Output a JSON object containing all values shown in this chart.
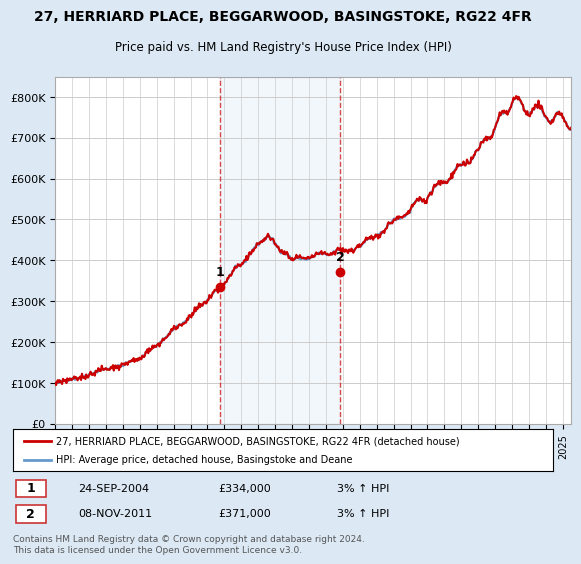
{
  "title": "27, HERRIARD PLACE, BEGGARWOOD, BASINGSTOKE, RG22 4FR",
  "subtitle": "Price paid vs. HM Land Registry's House Price Index (HPI)",
  "ylabel_ticks": [
    "£0",
    "£100K",
    "£200K",
    "£300K",
    "£400K",
    "£500K",
    "£600K",
    "£700K",
    "£800K"
  ],
  "ytick_values": [
    0,
    100000,
    200000,
    300000,
    400000,
    500000,
    600000,
    700000,
    800000
  ],
  "ylim": [
    0,
    850000
  ],
  "xlim_start": 1995.0,
  "xlim_end": 2025.5,
  "transaction1_x": 2004.73,
  "transaction1_y": 334000,
  "transaction1_label": "1",
  "transaction1_date": "24-SEP-2004",
  "transaction1_price": "£334,000",
  "transaction1_hpi": "3% ↑ HPI",
  "transaction2_x": 2011.85,
  "transaction2_y": 371000,
  "transaction2_label": "2",
  "transaction2_date": "08-NOV-2011",
  "transaction2_price": "£371,000",
  "transaction2_hpi": "3% ↑ HPI",
  "line_color_price": "#cc0000",
  "line_color_hpi": "#6699cc",
  "background_color": "#dce9f5",
  "plot_bg_color": "#ffffff",
  "grid_color": "#cccccc",
  "legend_line1": "27, HERRIARD PLACE, BEGGARWOOD, BASINGSTOKE, RG22 4FR (detached house)",
  "legend_line2": "HPI: Average price, detached house, Basingstoke and Deane",
  "footer": "Contains HM Land Registry data © Crown copyright and database right 2024.\nThis data is licensed under the Open Government Licence v3.0."
}
